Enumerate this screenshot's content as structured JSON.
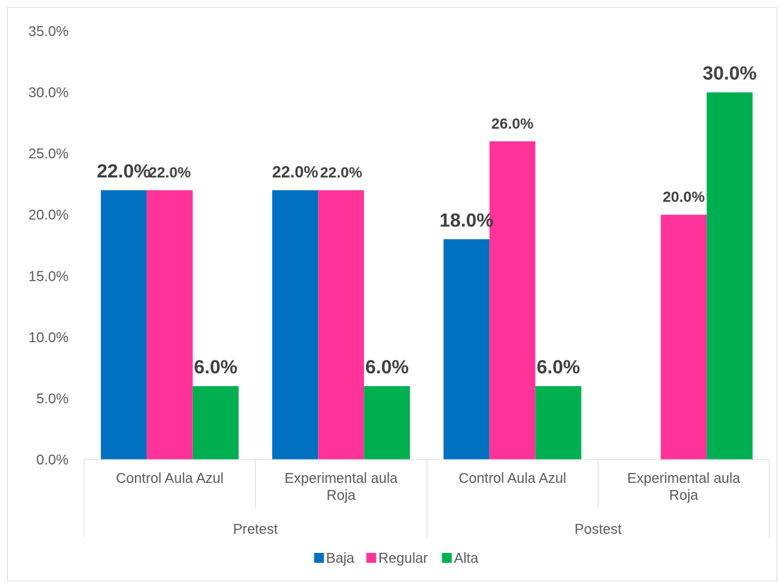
{
  "chart_data": {
    "type": "bar",
    "title": "",
    "xlabel": "",
    "ylabel": "",
    "ylim": [
      0,
      35
    ],
    "yticks": [
      "0.0%",
      "5.0%",
      "10.0%",
      "15.0%",
      "20.0%",
      "25.0%",
      "30.0%",
      "35.0%"
    ],
    "grid": false,
    "legend_position": "bottom",
    "groups": [
      {
        "name": "Pretest",
        "categories": [
          "Control Aula Azul",
          "Experimental aula Roja"
        ]
      },
      {
        "name": "Postest",
        "categories": [
          "Control Aula Azul",
          "Experimental aula Roja"
        ]
      }
    ],
    "series": [
      {
        "name": "Baja",
        "color": "#0070C0",
        "values": [
          22.0,
          22.0,
          18.0,
          0
        ],
        "labels": [
          "22.0%",
          "22.0%",
          "18.0%",
          ""
        ]
      },
      {
        "name": "Regular",
        "color": "#FF3399",
        "values": [
          22.0,
          22.0,
          26.0,
          20.0
        ],
        "labels": [
          "22.0%",
          "22.0%",
          "26.0%",
          "20.0%"
        ]
      },
      {
        "name": "Alta",
        "color": "#00B050",
        "values": [
          6.0,
          6.0,
          6.0,
          30.0
        ],
        "labels": [
          "6.0%",
          "6.0%",
          "6.0%",
          "30.0%"
        ]
      }
    ]
  }
}
